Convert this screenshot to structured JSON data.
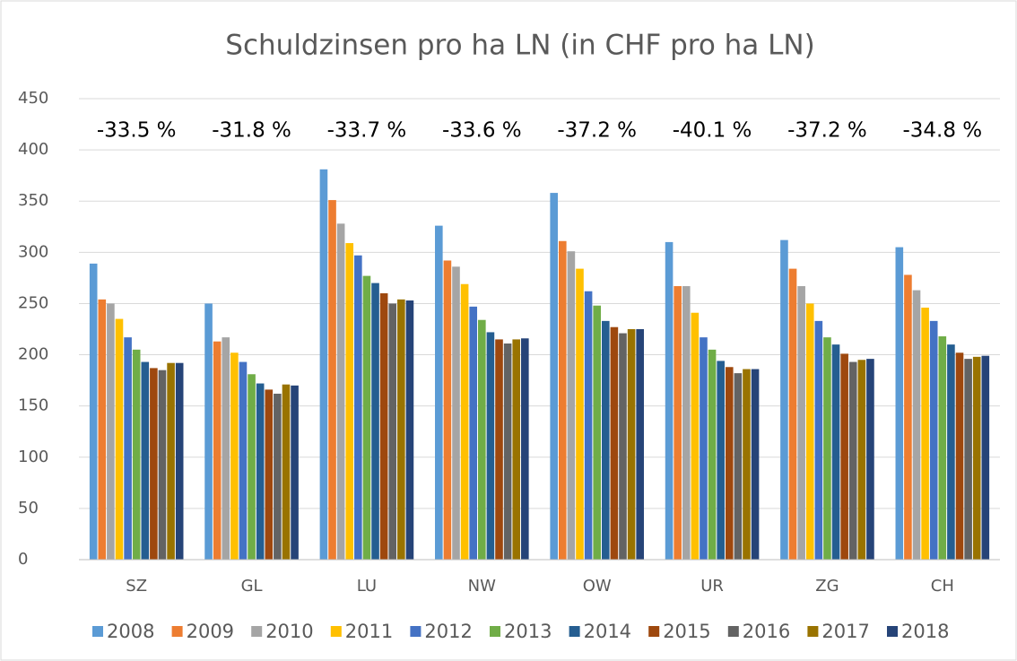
{
  "chart_data": {
    "type": "bar",
    "title": "Schuldzinsen pro ha LN (in CHF pro ha LN)",
    "categories": [
      "SZ",
      "GL",
      "LU",
      "NW",
      "OW",
      "UR",
      "ZG",
      "CH"
    ],
    "annotations": [
      "-33.5 %",
      "-31.8 %",
      "-33.7 %",
      "-33.6 %",
      "-37.2 %",
      "-40.1 %",
      "-37.2 %",
      "-34.8 %"
    ],
    "series": [
      {
        "name": "2008",
        "color": "#5b9bd5",
        "values": [
          289,
          250,
          381,
          326,
          358,
          310,
          312,
          305
        ]
      },
      {
        "name": "2009",
        "color": "#ed7d31",
        "values": [
          254,
          213,
          351,
          292,
          311,
          267,
          284,
          278
        ]
      },
      {
        "name": "2010",
        "color": "#a5a5a5",
        "values": [
          250,
          217,
          328,
          286,
          301,
          267,
          267,
          263
        ]
      },
      {
        "name": "2011",
        "color": "#ffc000",
        "values": [
          235,
          202,
          309,
          269,
          284,
          241,
          250,
          246
        ]
      },
      {
        "name": "2012",
        "color": "#4472c4",
        "values": [
          217,
          193,
          297,
          247,
          262,
          217,
          233,
          233
        ]
      },
      {
        "name": "2013",
        "color": "#70ad47",
        "values": [
          205,
          181,
          277,
          234,
          248,
          205,
          217,
          218
        ]
      },
      {
        "name": "2014",
        "color": "#255e91",
        "values": [
          193,
          172,
          270,
          222,
          233,
          194,
          210,
          210
        ]
      },
      {
        "name": "2015",
        "color": "#9e480e",
        "values": [
          187,
          166,
          260,
          215,
          227,
          188,
          201,
          202
        ]
      },
      {
        "name": "2016",
        "color": "#636363",
        "values": [
          185,
          162,
          250,
          211,
          221,
          182,
          193,
          196
        ]
      },
      {
        "name": "2017",
        "color": "#997300",
        "values": [
          192,
          171,
          254,
          215,
          225,
          186,
          195,
          198
        ]
      },
      {
        "name": "2018",
        "color": "#264478",
        "values": [
          192,
          170,
          253,
          216,
          225,
          186,
          196,
          199
        ]
      }
    ],
    "ylim": [
      0,
      450
    ],
    "yticks": [
      0,
      50,
      100,
      150,
      200,
      250,
      300,
      350,
      400,
      450
    ],
    "grid": true,
    "legend": "bottom"
  }
}
